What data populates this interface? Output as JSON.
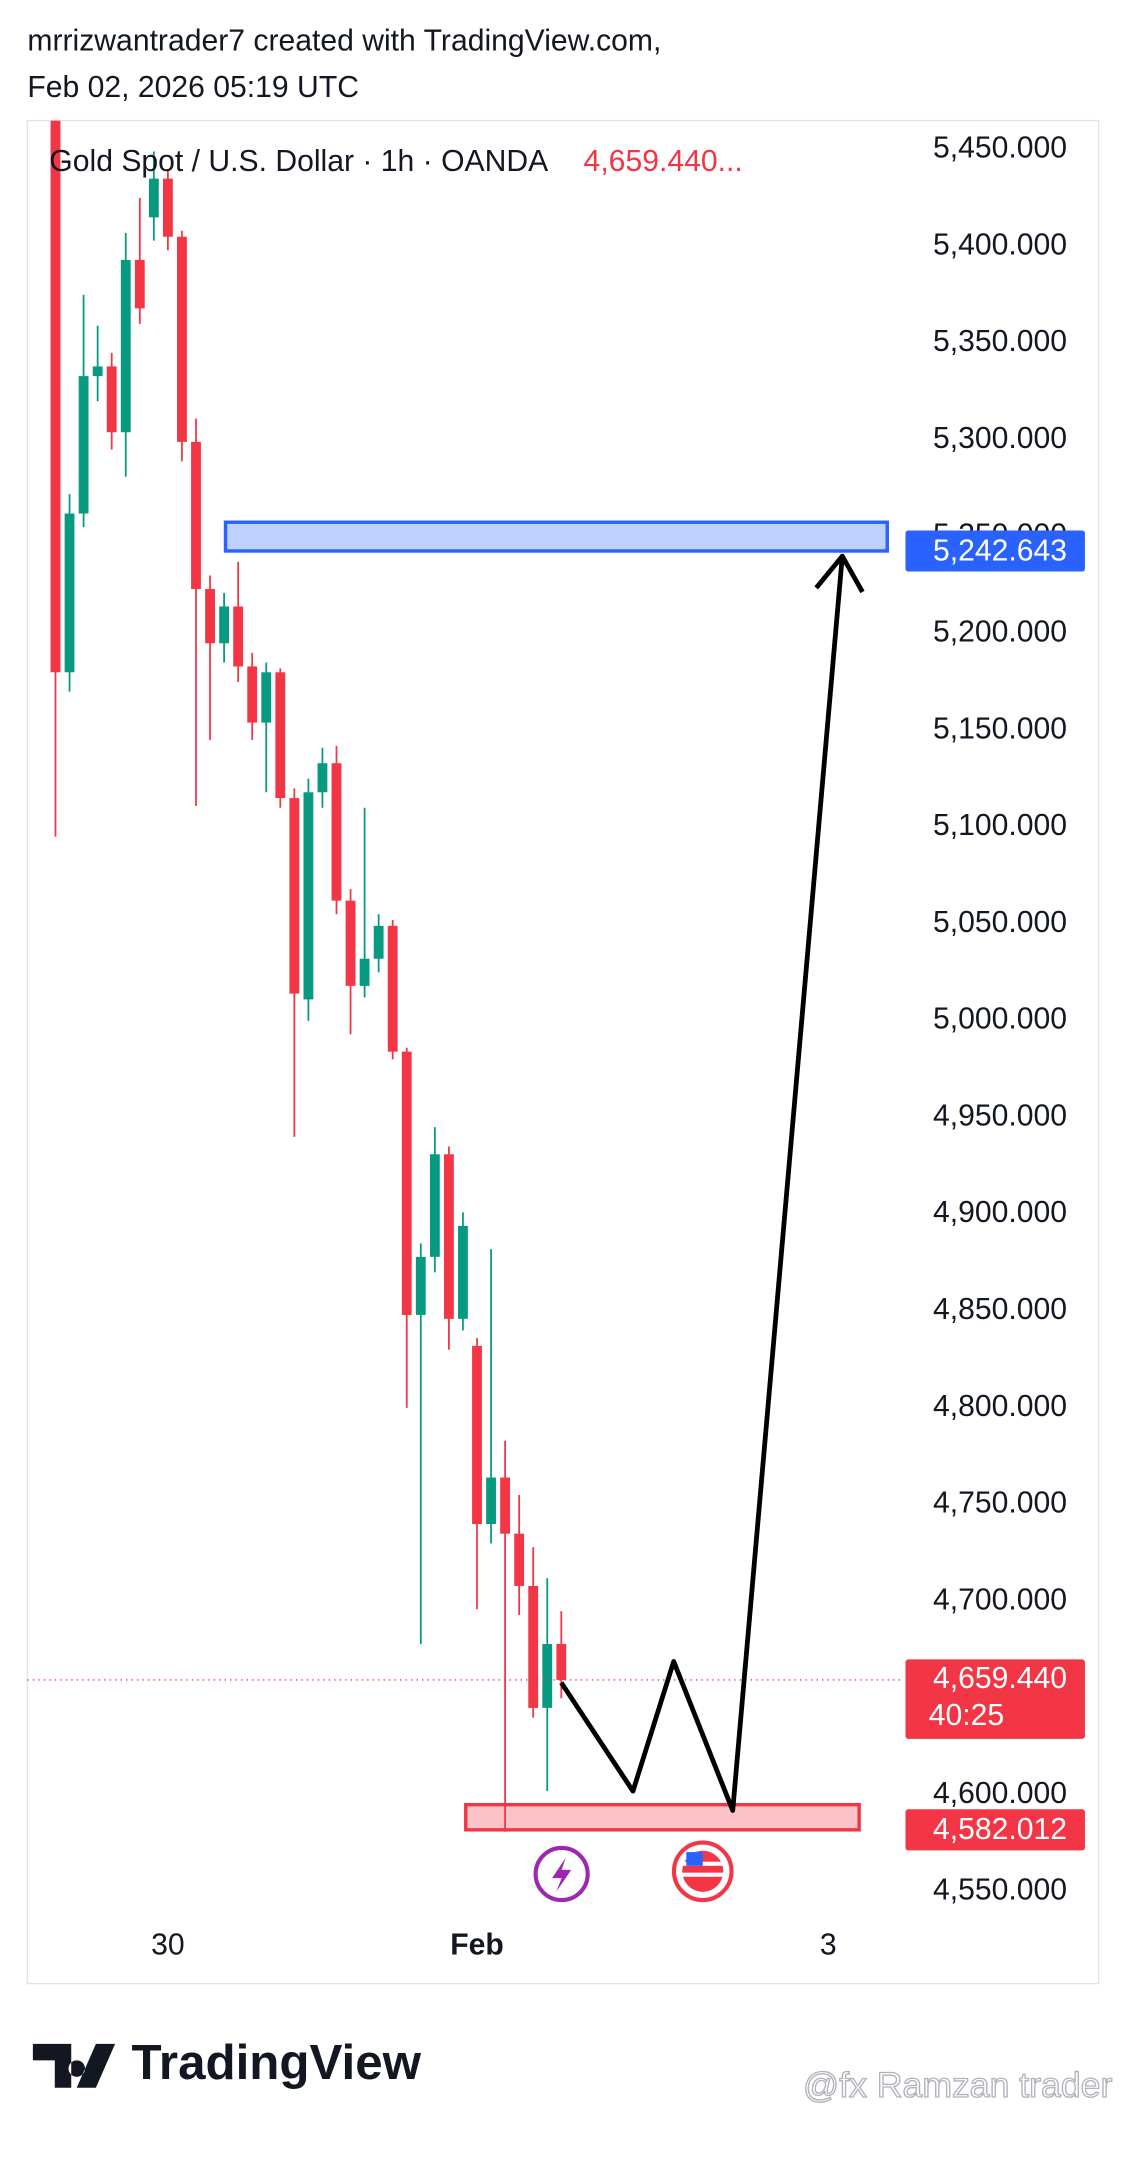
{
  "header": {
    "line1": "mrrizwantrader7 created with TradingView.com,",
    "line2": "Feb 02, 2026 05:19 UTC"
  },
  "chart_data": {
    "type": "candlestick",
    "title": "Gold Spot / U.S. Dollar · 1h · OANDA",
    "title_price": "4,659.440...",
    "up_color": "#089981",
    "down_color": "#f23645",
    "x": [
      0,
      1,
      2,
      3,
      4,
      5,
      6,
      7,
      8,
      9,
      10,
      11,
      12,
      13,
      14,
      15,
      16,
      17,
      18,
      19,
      20,
      21,
      22,
      23,
      24,
      25,
      26,
      27,
      28,
      29,
      30,
      31,
      32,
      33,
      34,
      35,
      36
    ],
    "open": [
      5465,
      5180,
      5262,
      5333,
      5338,
      5304,
      5393,
      5415,
      5435,
      5405,
      5299,
      5223,
      5195,
      5214,
      5183,
      5154,
      5180,
      5115,
      5011,
      5118,
      5133,
      5062,
      5018,
      5032,
      5049,
      4984,
      4848,
      4878,
      4931,
      4846,
      4832,
      4740,
      4764,
      4735,
      4708,
      4645,
      4678
    ],
    "high": [
      5465,
      5272,
      5375,
      5359,
      5345,
      5407,
      5425,
      5449,
      5440,
      5408,
      5311,
      5230,
      5221,
      5237,
      5190,
      5185,
      5182,
      5120,
      5125,
      5141,
      5142,
      5068,
      5110,
      5055,
      5052,
      4986,
      4885,
      4945,
      4935,
      4901,
      4836,
      4882,
      4783,
      4755,
      4728,
      4712,
      4695
    ],
    "low": [
      5095,
      5170,
      5255,
      5320,
      5295,
      5281,
      5360,
      5403,
      5398,
      5289,
      5111,
      5145,
      5185,
      5175,
      5145,
      5118,
      5110,
      4940,
      5000,
      5110,
      5055,
      4993,
      5012,
      5025,
      4980,
      4800,
      4678,
      4870,
      4830,
      4840,
      4696,
      4730,
      4581,
      4693,
      4640,
      4602,
      4650
    ],
    "close": [
      5180,
      5262,
      5333,
      5338,
      5304,
      5393,
      5368,
      5435,
      5405,
      5299,
      5223,
      5195,
      5214,
      5183,
      5154,
      5180,
      5115,
      5014,
      5118,
      5133,
      5062,
      5018,
      5032,
      5049,
      4984,
      4848,
      4878,
      4931,
      4846,
      4894,
      4740,
      4764,
      4735,
      4708,
      4645,
      4678,
      4659.44
    ],
    "xlim": [
      -2,
      60.4
    ],
    "ylim": [
      4533,
      5465
    ],
    "xticks": [
      {
        "value": 8,
        "label": "30"
      },
      {
        "value": 30,
        "label": "Feb"
      },
      {
        "value": 55,
        "label": "3"
      }
    ],
    "yticks": [
      {
        "value": 4550,
        "label": "4,550.000"
      },
      {
        "value": 4600,
        "label": "4,600.000"
      },
      {
        "value": 4650,
        "label": "4,650.000"
      },
      {
        "value": 4700,
        "label": "4,700.000"
      },
      {
        "value": 4750,
        "label": "4,750.000"
      },
      {
        "value": 4800,
        "label": "4,800.000"
      },
      {
        "value": 4850,
        "label": "4,850.000"
      },
      {
        "value": 4900,
        "label": "4,900.000"
      },
      {
        "value": 4950,
        "label": "4,950.000"
      },
      {
        "value": 5000,
        "label": "5,000.000"
      },
      {
        "value": 5050,
        "label": "5,050.000"
      },
      {
        "value": 5100,
        "label": "5,100.000"
      },
      {
        "value": 5150,
        "label": "5,150.000"
      },
      {
        "value": 5200,
        "label": "5,200.000"
      },
      {
        "value": 5250,
        "label": "5,250.000"
      },
      {
        "value": 5300,
        "label": "5,300.000"
      },
      {
        "value": 5350,
        "label": "5,350.000"
      },
      {
        "value": 5400,
        "label": "5,400.000"
      },
      {
        "value": 5450,
        "label": "5,450.000"
      }
    ],
    "last_price": {
      "value": 4659.44,
      "label": "4,659.440",
      "countdown": "40:25"
    },
    "zones": [
      {
        "x": [
          12.1,
          59.2
        ],
        "y": [
          5242.643,
          5257.5
        ],
        "color": "#2962ff",
        "label": {
          "value": 5242.643,
          "label": "5,242.643"
        }
      },
      {
        "x": [
          29.2,
          57.2
        ],
        "y": [
          4582.012,
          4595
        ],
        "color": "#f23645",
        "label": {
          "value": 4582.012,
          "label": "4,582.012"
        }
      }
    ],
    "arrow": {
      "x": [
        36,
        41.1,
        44,
        48.2,
        56
      ],
      "y": [
        4658,
        4602,
        4669,
        4592,
        5240
      ]
    }
  },
  "footer": {
    "logo": "TradingView",
    "watermark": "@fx Ramzan trader"
  }
}
